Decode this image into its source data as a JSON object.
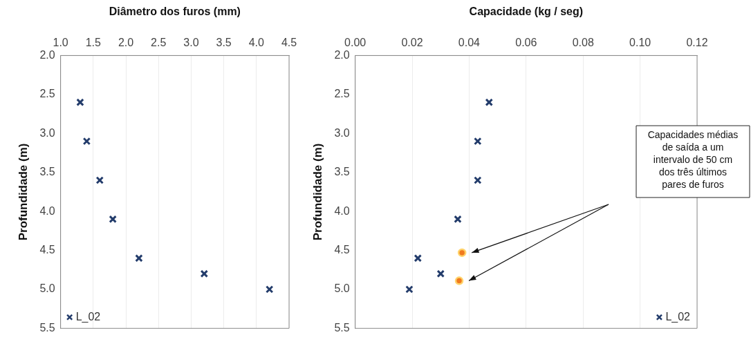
{
  "chart_data": [
    {
      "type": "scatter",
      "xlabel": "Diâmetro dos furos (mm)",
      "ylabel": "Profundidade (m)",
      "xlim": [
        1.0,
        4.5
      ],
      "xticks": [
        {
          "value": 1,
          "label": "1.0"
        },
        1.5,
        {
          "value": 2,
          "label": "2.0"
        },
        2.5,
        {
          "value": 3,
          "label": "3.0"
        },
        3.5,
        {
          "value": 4,
          "label": "4.0"
        },
        4.5
      ],
      "ylim": [
        5.5,
        2.0
      ],
      "yticks": [
        {
          "value": 2,
          "label": "2.0"
        },
        2.5,
        {
          "value": 3,
          "label": "3.0"
        },
        3.5,
        {
          "value": 4,
          "label": "4.0"
        },
        4.5,
        {
          "value": 5,
          "label": "5.0"
        },
        5.5
      ],
      "grid": "x",
      "legend": "bottom left",
      "marker": "cross",
      "series": [
        {
          "name": "L_02",
          "color": "#233c6b",
          "x": [
            1.3,
            1.4,
            1.6,
            1.8,
            2.2,
            3.2,
            4.2
          ],
          "values": [
            2.6,
            3.1,
            3.6,
            4.1,
            4.6,
            4.8,
            5.0
          ]
        }
      ]
    },
    {
      "type": "scatter",
      "xlabel": "Capacidade (kg / seg)",
      "ylabel": "Profundidade (m)",
      "xlim": [
        0,
        0.12
      ],
      "xticks": [
        {
          "value": 0,
          "label": "0.00"
        },
        0.02,
        0.04,
        0.06,
        0.08,
        {
          "value": 0.1,
          "label": "0.10"
        },
        0.12
      ],
      "ylim": [
        5.5,
        2.0
      ],
      "yticks": [
        {
          "value": 2,
          "label": "2.0"
        },
        2.5,
        {
          "value": 3,
          "label": "3.0"
        },
        3.5,
        {
          "value": 4,
          "label": "4.0"
        },
        4.5,
        {
          "value": 5,
          "label": "5.0"
        },
        5.5
      ],
      "grid": "x",
      "legend": "bottom right",
      "marker": "cross",
      "annotations": [
        "Capacidades médias de saída a um intervalo de 50 cm dos três últimos pares de furos"
      ],
      "series": [
        {
          "name": "L_02",
          "color": "#233c6b",
          "x": [
            0.047,
            0.043,
            0.043,
            0.036,
            0.022,
            0.03,
            0.019
          ],
          "values": [
            2.6,
            3.1,
            3.6,
            4.1,
            4.6,
            4.8,
            5.0
          ]
        },
        {
          "color": "#f07a1e",
          "marker": "circle",
          "x": [
            0.0375,
            0.0365
          ],
          "values": [
            4.53,
            4.89
          ]
        }
      ]
    }
  ]
}
